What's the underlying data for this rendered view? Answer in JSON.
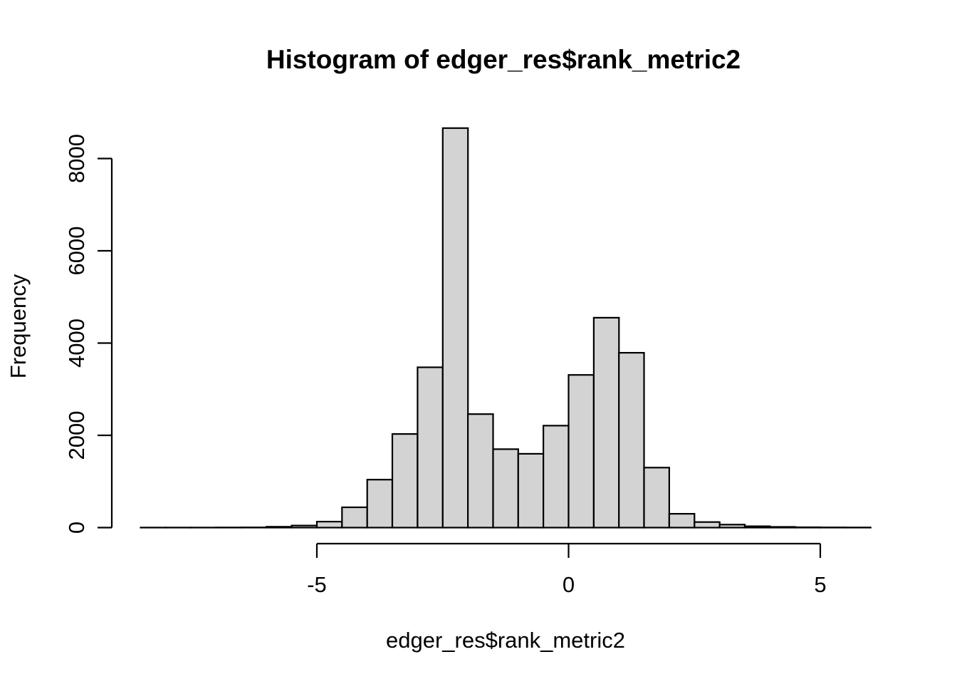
{
  "window": {
    "background": "#ffffff"
  },
  "chart_data": {
    "type": "bar",
    "chart_kind": "histogram",
    "title": "Histogram of edger_res$rank_metric2",
    "xlabel": "edger_res$rank_metric2",
    "ylabel": "Frequency",
    "bin_width": 0.5,
    "breaks": [
      -8.5,
      -8.0,
      -7.5,
      -7.0,
      -6.5,
      -6.0,
      -5.5,
      -5.0,
      -4.5,
      -4.0,
      -3.5,
      -3.0,
      -2.5,
      -2.0,
      -1.5,
      -1.0,
      -0.5,
      0.0,
      0.5,
      1.0,
      1.5,
      2.0,
      2.5,
      3.0,
      3.5,
      4.0,
      4.5,
      5.0,
      5.5,
      6.0
    ],
    "counts": [
      1,
      1,
      2,
      3,
      5,
      18,
      45,
      130,
      440,
      1040,
      2030,
      3475,
      8660,
      2460,
      1700,
      1600,
      2210,
      3310,
      4550,
      3790,
      1300,
      300,
      120,
      65,
      30,
      15,
      8,
      5,
      3
    ],
    "x_ticks": [
      -5,
      0,
      5
    ],
    "y_ticks": [
      0,
      2000,
      4000,
      6000,
      8000
    ],
    "xlim": [
      -8.5,
      6.0
    ],
    "ylim": [
      0,
      8660
    ],
    "grid": "off",
    "legend": "none",
    "colors": {
      "bar_fill": "#d3d3d3",
      "bar_stroke": "#000000",
      "axis": "#000000",
      "text": "#000000",
      "background": "#ffffff"
    }
  }
}
